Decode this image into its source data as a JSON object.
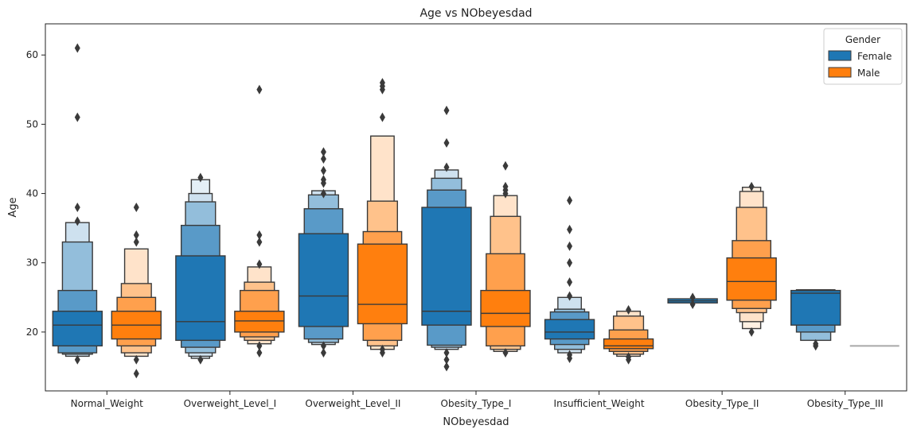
{
  "chart_data": {
    "type": "boxen",
    "title": "Age vs NObeyesdad",
    "xlabel": "NObeyesdad",
    "ylabel": "Age",
    "ylim": [
      11.5,
      64.5
    ],
    "yticks": [
      20,
      30,
      40,
      50,
      60
    ],
    "categories": [
      "Normal_Weight",
      "Overweight_Level_I",
      "Overweight_Level_II",
      "Obesity_Type_I",
      "Insufficient_Weight",
      "Obesity_Type_II",
      "Obesity_Type_III"
    ],
    "legend": {
      "title": "Gender",
      "position": "top-right"
    },
    "series": [
      {
        "name": "Female",
        "color": "#1f77b4",
        "groups": [
          {
            "boxes": [
              [
                18,
                23
              ],
              [
                17,
                26
              ],
              [
                16.8,
                33
              ],
              [
                16.5,
                35.8
              ]
            ],
            "median": 21,
            "outliers": [
              16,
              36,
              38,
              51,
              61
            ]
          },
          {
            "boxes": [
              [
                18.8,
                31
              ],
              [
                17.8,
                35.4
              ],
              [
                17,
                38.8
              ],
              [
                16.5,
                40
              ],
              [
                16.2,
                42
              ]
            ],
            "median": 21.5,
            "outliers": [
              16,
              42.3
            ]
          },
          {
            "boxes": [
              [
                20.8,
                34.2
              ],
              [
                19,
                37.8
              ],
              [
                18.5,
                39.8
              ],
              [
                18.2,
                40.4
              ]
            ],
            "median": 25.2,
            "outliers": [
              17,
              18,
              40,
              41.5,
              42,
              43.3,
              45,
              46
            ]
          },
          {
            "boxes": [
              [
                21,
                38
              ],
              [
                18.1,
                40.5
              ],
              [
                17.8,
                42.2
              ],
              [
                17.5,
                43.4
              ]
            ],
            "median": 23,
            "outliers": [
              15,
              16,
              17,
              43.8,
              47.3,
              52
            ]
          },
          {
            "boxes": [
              [
                19,
                21.8
              ],
              [
                18.2,
                22.9
              ],
              [
                17.5,
                23.3
              ],
              [
                17,
                25
              ]
            ],
            "median": 20,
            "outliers": [
              16.2,
              16.7,
              25.2,
              27.2,
              30,
              32.4,
              34.8,
              39
            ]
          },
          {
            "boxes": [
              [
                24.2,
                24.8
              ]
            ],
            "median": 24.5,
            "outliers": [
              24,
              25
            ]
          },
          {
            "boxes": [
              [
                21,
                26
              ],
              [
                20,
                26.1
              ],
              [
                18.8,
                26.1
              ]
            ],
            "median": 25.6,
            "outliers": [
              18,
              18.3
            ]
          }
        ]
      },
      {
        "name": "Male",
        "color": "#ff7f0e",
        "groups": [
          {
            "boxes": [
              [
                19,
                23
              ],
              [
                18,
                25
              ],
              [
                17,
                27
              ],
              [
                16.5,
                32
              ]
            ],
            "median": 21,
            "outliers": [
              14,
              16,
              33,
              34,
              38
            ]
          },
          {
            "boxes": [
              [
                20,
                23
              ],
              [
                19.3,
                26
              ],
              [
                18.8,
                27.2
              ],
              [
                18.3,
                29.4
              ]
            ],
            "median": 21.6,
            "outliers": [
              17,
              18,
              29.8,
              33,
              34,
              55
            ]
          },
          {
            "boxes": [
              [
                21.2,
                32.7
              ],
              [
                18.8,
                34.5
              ],
              [
                18,
                38.9
              ],
              [
                17.5,
                48.3
              ]
            ],
            "median": 24,
            "outliers": [
              17,
              17.5,
              51,
              55,
              55.5,
              56
            ]
          },
          {
            "boxes": [
              [
                20.8,
                26
              ],
              [
                18,
                31.3
              ],
              [
                17.5,
                36.7
              ],
              [
                17.2,
                39.7
              ]
            ],
            "median": 22.7,
            "outliers": [
              17,
              40,
              40.5,
              41,
              44
            ]
          },
          {
            "boxes": [
              [
                17.6,
                19
              ],
              [
                17.2,
                20.3
              ],
              [
                16.8,
                22.3
              ],
              [
                16.5,
                23
              ]
            ],
            "median": 18,
            "outliers": [
              16,
              16.4,
              23.2
            ]
          },
          {
            "boxes": [
              [
                24.6,
                30.7
              ],
              [
                23.4,
                33.2
              ],
              [
                22.8,
                38
              ],
              [
                21.5,
                40.3
              ],
              [
                20.5,
                40.9
              ]
            ],
            "median": 27.3,
            "outliers": [
              20,
              41
            ]
          },
          {
            "boxes": [],
            "median": 18,
            "flat": true,
            "outliers": []
          }
        ]
      }
    ]
  }
}
